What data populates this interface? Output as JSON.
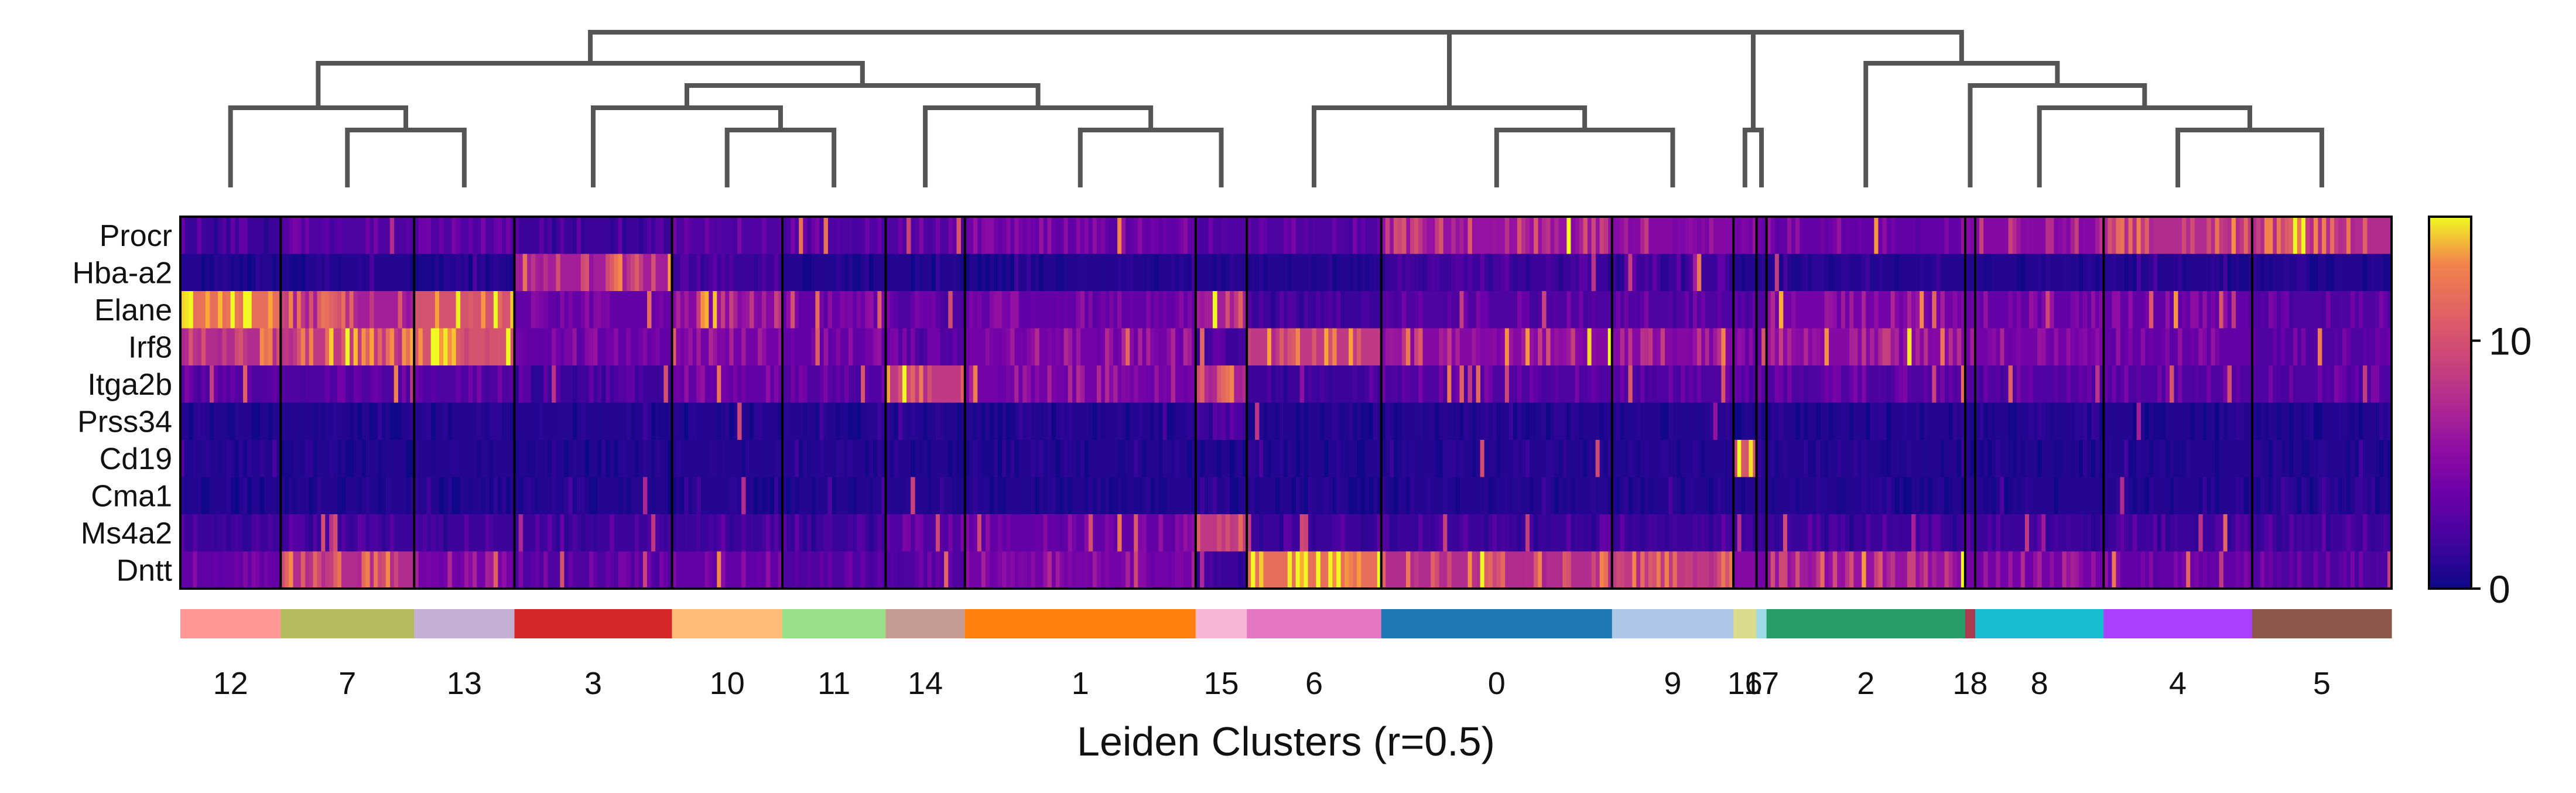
{
  "chart_data": {
    "type": "heatmap",
    "xlabel": "Leiden Clusters (r=0.5)",
    "genes": [
      "Procr",
      "Hba-a2",
      "Elane",
      "Irf8",
      "Itga2b",
      "Prss34",
      "Cd19",
      "Cma1",
      "Ms4a2",
      "Dntt"
    ],
    "clusters": [
      {
        "label": "12",
        "color": "#ff9896",
        "weight": 1.0,
        "expr": [
          2,
          1,
          14,
          9,
          3,
          1,
          1,
          1,
          2,
          4
        ]
      },
      {
        "label": "7",
        "color": "#b5bd61",
        "weight": 1.33,
        "expr": [
          3,
          1,
          8,
          10,
          3,
          1,
          1,
          1,
          2,
          9
        ]
      },
      {
        "label": "13",
        "color": "#c5b0d5",
        "weight": 1.0,
        "expr": [
          3,
          1,
          12,
          12,
          3,
          1,
          1,
          1,
          2,
          5
        ]
      },
      {
        "label": "3",
        "color": "#d62728",
        "weight": 1.57,
        "expr": [
          2,
          8,
          4,
          4,
          2,
          1,
          1,
          1,
          2,
          3
        ]
      },
      {
        "label": "10",
        "color": "#ffbb78",
        "weight": 1.1,
        "expr": [
          3,
          2,
          6,
          5,
          4,
          1,
          1,
          1,
          2,
          4
        ]
      },
      {
        "label": "11",
        "color": "#98df8a",
        "weight": 1.03,
        "expr": [
          3,
          1,
          4,
          4,
          3,
          1,
          1,
          1,
          2,
          3
        ]
      },
      {
        "label": "14",
        "color": "#c49c94",
        "weight": 0.79,
        "expr": [
          3,
          1,
          3,
          3,
          10,
          1,
          1,
          1,
          3,
          3
        ]
      },
      {
        "label": "1",
        "color": "#ff7f0e",
        "weight": 2.3,
        "expr": [
          4,
          1,
          4,
          5,
          5,
          1,
          1,
          1,
          4,
          5
        ]
      },
      {
        "label": "15",
        "color": "#f7b6d2",
        "weight": 0.51,
        "expr": [
          3,
          1,
          8,
          2,
          9,
          2,
          1,
          1,
          10,
          2
        ]
      },
      {
        "label": "6",
        "color": "#e377c2",
        "weight": 1.34,
        "expr": [
          3,
          1,
          2,
          10,
          2,
          1,
          1,
          1,
          2,
          14
        ]
      },
      {
        "label": "0",
        "color": "#1f77b4",
        "weight": 2.3,
        "expr": [
          7,
          2,
          3,
          6,
          3,
          1,
          1,
          1,
          2,
          9
        ]
      },
      {
        "label": "9",
        "color": "#aec7e8",
        "weight": 1.21,
        "expr": [
          6,
          2,
          3,
          6,
          3,
          1,
          1,
          1,
          2,
          10
        ]
      },
      {
        "label": "16",
        "color": "#dbdb8d",
        "weight": 0.23,
        "expr": [
          5,
          1,
          3,
          4,
          3,
          1,
          12,
          1,
          2,
          6
        ]
      },
      {
        "label": "17",
        "color": "#9edae5",
        "weight": 0.1,
        "expr": [
          4,
          1,
          3,
          4,
          3,
          1,
          2,
          1,
          2,
          5
        ]
      },
      {
        "label": "2",
        "color": "#279e68",
        "weight": 1.98,
        "expr": [
          4,
          1,
          5,
          6,
          3,
          1,
          1,
          1,
          2,
          7
        ]
      },
      {
        "label": "18",
        "color": "#aa3b50",
        "weight": 0.1,
        "expr": [
          4,
          1,
          4,
          5,
          3,
          1,
          1,
          1,
          2,
          5
        ]
      },
      {
        "label": "8",
        "color": "#17becf",
        "weight": 1.28,
        "expr": [
          6,
          1,
          4,
          5,
          3,
          1,
          1,
          1,
          2,
          5
        ]
      },
      {
        "label": "4",
        "color": "#aa40fc",
        "weight": 1.48,
        "expr": [
          9,
          1,
          4,
          4,
          3,
          1,
          1,
          1,
          2,
          4
        ]
      },
      {
        "label": "5",
        "color": "#8c564b",
        "weight": 1.39,
        "expr": [
          9,
          1,
          3,
          3,
          3,
          1,
          1,
          1,
          2,
          3
        ]
      }
    ],
    "colormap": "plasma",
    "colorbar": {
      "min": 0,
      "max": 15,
      "ticks": [
        0,
        10
      ]
    },
    "dendrogram": true,
    "grid": false
  }
}
